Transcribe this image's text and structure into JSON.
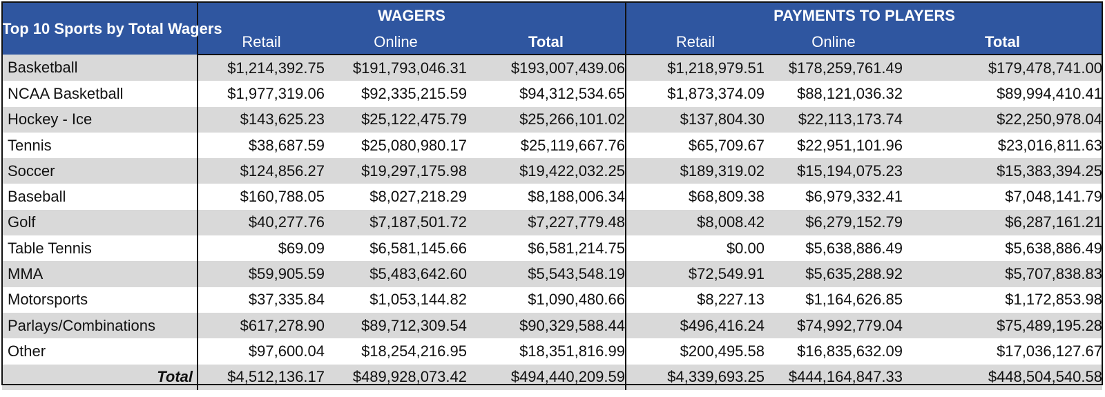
{
  "header": {
    "corner_label": "Top 10 Sports by Total Wagers",
    "wagers_label": "WAGERS",
    "payments_label": "PAYMENTS TO PLAYERS",
    "sub_labels": [
      "Retail",
      "Online",
      "Total",
      "Retail",
      "Online",
      "Total"
    ]
  },
  "rows": [
    {
      "sport": "Basketball",
      "w_retail": "$1,214,392.75",
      "w_online": "$191,793,046.31",
      "w_total": "$193,007,439.06",
      "p_retail": "$1,218,979.51",
      "p_online": "$178,259,761.49",
      "p_total": "$179,478,741.00"
    },
    {
      "sport": "NCAA Basketball",
      "w_retail": "$1,977,319.06",
      "w_online": "$92,335,215.59",
      "w_total": "$94,312,534.65",
      "p_retail": "$1,873,374.09",
      "p_online": "$88,121,036.32",
      "p_total": "$89,994,410.41"
    },
    {
      "sport": "Hockey - Ice",
      "w_retail": "$143,625.23",
      "w_online": "$25,122,475.79",
      "w_total": "$25,266,101.02",
      "p_retail": "$137,804.30",
      "p_online": "$22,113,173.74",
      "p_total": "$22,250,978.04"
    },
    {
      "sport": "Tennis",
      "w_retail": "$38,687.59",
      "w_online": "$25,080,980.17",
      "w_total": "$25,119,667.76",
      "p_retail": "$65,709.67",
      "p_online": "$22,951,101.96",
      "p_total": "$23,016,811.63"
    },
    {
      "sport": "Soccer",
      "w_retail": "$124,856.27",
      "w_online": "$19,297,175.98",
      "w_total": "$19,422,032.25",
      "p_retail": "$189,319.02",
      "p_online": "$15,194,075.23",
      "p_total": "$15,383,394.25"
    },
    {
      "sport": "Baseball",
      "w_retail": "$160,788.05",
      "w_online": "$8,027,218.29",
      "w_total": "$8,188,006.34",
      "p_retail": "$68,809.38",
      "p_online": "$6,979,332.41",
      "p_total": "$7,048,141.79"
    },
    {
      "sport": "Golf",
      "w_retail": "$40,277.76",
      "w_online": "$7,187,501.72",
      "w_total": "$7,227,779.48",
      "p_retail": "$8,008.42",
      "p_online": "$6,279,152.79",
      "p_total": "$6,287,161.21"
    },
    {
      "sport": "Table Tennis",
      "w_retail": "$69.09",
      "w_online": "$6,581,145.66",
      "w_total": "$6,581,214.75",
      "p_retail": "$0.00",
      "p_online": "$5,638,886.49",
      "p_total": "$5,638,886.49"
    },
    {
      "sport": "MMA",
      "w_retail": "$59,905.59",
      "w_online": "$5,483,642.60",
      "w_total": "$5,543,548.19",
      "p_retail": "$72,549.91",
      "p_online": "$5,635,288.92",
      "p_total": "$5,707,838.83"
    },
    {
      "sport": "Motorsports",
      "w_retail": "$37,335.84",
      "w_online": "$1,053,144.82",
      "w_total": "$1,090,480.66",
      "p_retail": "$8,227.13",
      "p_online": "$1,164,626.85",
      "p_total": "$1,172,853.98"
    },
    {
      "sport": "Parlays/Combinations",
      "w_retail": "$617,278.90",
      "w_online": "$89,712,309.54",
      "w_total": "$90,329,588.44",
      "p_retail": "$496,416.24",
      "p_online": "$74,992,779.04",
      "p_total": "$75,489,195.28"
    },
    {
      "sport": "Other",
      "w_retail": "$97,600.04",
      "w_online": "$18,254,216.95",
      "w_total": "$18,351,816.99",
      "p_retail": "$200,495.58",
      "p_online": "$16,835,632.09",
      "p_total": "$17,036,127.67"
    }
  ],
  "total_row": {
    "label": "Total",
    "w_retail": "$4,512,136.17",
    "w_online": "$489,928,073.42",
    "w_total": "$494,440,209.59",
    "p_retail": "$4,339,693.25",
    "p_online": "$444,164,847.33",
    "p_total": "$448,504,540.58"
  },
  "colors": {
    "header_bg": "#2f56a0",
    "shade": "#d9d9d9",
    "header_text": "#ffffff"
  }
}
